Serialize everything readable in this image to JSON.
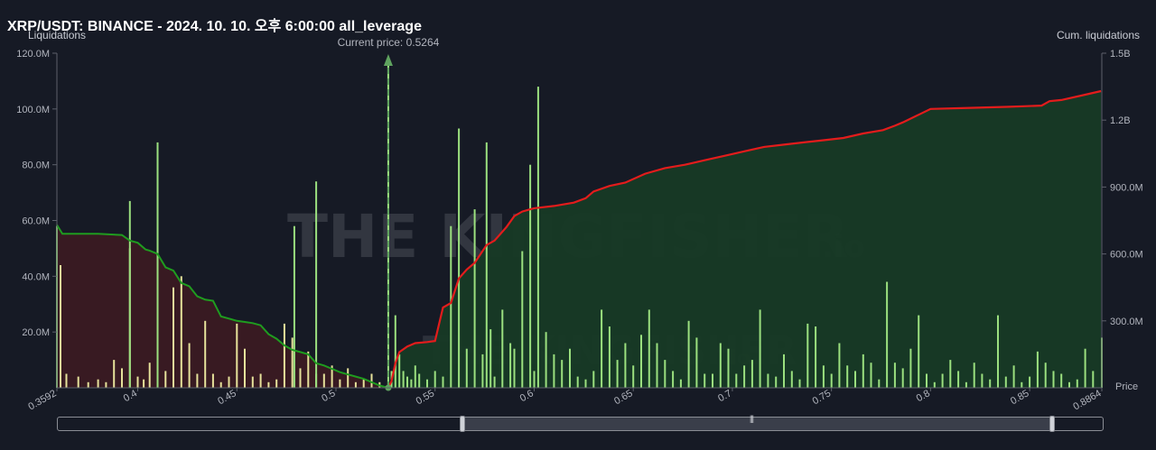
{
  "header": {
    "title": "XRP/USDT: BINANCE - 2024. 10. 10. 오후 6:00:00 all_leverage",
    "left_axis_title": "Liquidations",
    "right_axis_title": "Cum. liquidations",
    "x_axis_title": "Price",
    "current_price_label": "Current price: 0.5264"
  },
  "watermark": {
    "brand": "THE KINGFISHER",
    "suffix": ".io"
  },
  "colors": {
    "background": "#161a25",
    "short_bar": "#9be07f",
    "long_bar": "#e6e29b",
    "cum_short_line": "#e31c1c",
    "cum_long_line": "#1f9c1f",
    "cum_short_fill": "#173a25",
    "cum_long_fill": "#3a1a22",
    "current_price_line": "#5fa35f"
  },
  "chart_data": {
    "type": "bar",
    "x_range": [
      0.3592,
      0.8864
    ],
    "x_ticks": [
      "0.3592",
      "0.4",
      "0.45",
      "0.5",
      "0.55",
      "0.6",
      "0.65",
      "0.7",
      "0.75",
      "0.8",
      "0.85",
      "0.8864"
    ],
    "left_axis": {
      "label": "Liquidations",
      "range": [
        0,
        120000000
      ],
      "ticks": [
        "20.0M",
        "40.0M",
        "60.0M",
        "80.0M",
        "100.0M",
        "120.0M"
      ]
    },
    "right_axis": {
      "label": "Cum. liquidations",
      "range": [
        0,
        1500000000
      ],
      "ticks": [
        "300.0M",
        "600.0M",
        "900.0M",
        "1.2B",
        "1.5B"
      ]
    },
    "current_price": 0.5264,
    "long_liquidations": {
      "name": "Long liquidations",
      "x": [
        0.361,
        0.364,
        0.37,
        0.375,
        0.38,
        0.384,
        0.388,
        0.392,
        0.396,
        0.4,
        0.403,
        0.406,
        0.41,
        0.414,
        0.418,
        0.422,
        0.426,
        0.43,
        0.434,
        0.438,
        0.442,
        0.446,
        0.45,
        0.454,
        0.458,
        0.462,
        0.466,
        0.47,
        0.474,
        0.478,
        0.482,
        0.486,
        0.49,
        0.494,
        0.498,
        0.502,
        0.506,
        0.51,
        0.514,
        0.518,
        0.522
      ],
      "values": [
        44,
        5,
        4,
        2,
        3,
        2,
        10,
        7,
        50,
        4,
        3,
        9,
        3,
        6,
        36,
        40,
        16,
        5,
        24,
        5,
        2,
        4,
        23,
        14,
        4,
        5,
        2,
        3,
        23,
        18,
        7,
        13,
        5,
        5,
        8,
        3,
        7,
        2,
        3,
        5,
        2
      ]
    },
    "short_liquidations": {
      "name": "Short liquidations",
      "x": [
        0.3592,
        0.38,
        0.396,
        0.41,
        0.4225,
        0.434,
        0.442,
        0.479,
        0.49,
        0.498,
        0.512,
        0.518,
        0.5264,
        0.528,
        0.53,
        0.532,
        0.534,
        0.536,
        0.538,
        0.54,
        0.542,
        0.546,
        0.55,
        0.554,
        0.558,
        0.562,
        0.566,
        0.57,
        0.574,
        0.576,
        0.578,
        0.58,
        0.584,
        0.588,
        0.59,
        0.594,
        0.598,
        0.6,
        0.602,
        0.606,
        0.61,
        0.614,
        0.618,
        0.622,
        0.626,
        0.63,
        0.634,
        0.638,
        0.642,
        0.646,
        0.65,
        0.654,
        0.658,
        0.662,
        0.666,
        0.67,
        0.674,
        0.678,
        0.682,
        0.686,
        0.69,
        0.694,
        0.698,
        0.702,
        0.706,
        0.71,
        0.714,
        0.718,
        0.722,
        0.726,
        0.73,
        0.734,
        0.738,
        0.742,
        0.746,
        0.75,
        0.754,
        0.758,
        0.762,
        0.766,
        0.77,
        0.774,
        0.778,
        0.782,
        0.786,
        0.79,
        0.794,
        0.798,
        0.802,
        0.806,
        0.81,
        0.814,
        0.818,
        0.822,
        0.826,
        0.83,
        0.834,
        0.838,
        0.842,
        0.846,
        0.85,
        0.854,
        0.858,
        0.862,
        0.866,
        0.87,
        0.874,
        0.878,
        0.882,
        0.8864
      ],
      "values": [
        58,
        0,
        67,
        88,
        0,
        0,
        0,
        58,
        74,
        0,
        0,
        0,
        118,
        6,
        26,
        12,
        6,
        4,
        3,
        8,
        5,
        3,
        6,
        4,
        58,
        93,
        14,
        64,
        12,
        88,
        21,
        4,
        28,
        16,
        14,
        49,
        80,
        6,
        108,
        20,
        12,
        10,
        14,
        4,
        3,
        6,
        28,
        22,
        10,
        16,
        8,
        19,
        28,
        16,
        10,
        6,
        3,
        24,
        18,
        5,
        5,
        16,
        14,
        5,
        8,
        10,
        28,
        5,
        4,
        12,
        6,
        3,
        23,
        22,
        8,
        5,
        16,
        8,
        6,
        12,
        9,
        3,
        38,
        9,
        7,
        14,
        26,
        5,
        2,
        5,
        10,
        6,
        2,
        9,
        5,
        3,
        26,
        4,
        8,
        2,
        4,
        13,
        9,
        6,
        5,
        2,
        3,
        14,
        6,
        18
      ]
    },
    "cum_long": {
      "name": "Cum. long liquidations",
      "x": [
        0.3592,
        0.362,
        0.37,
        0.38,
        0.392,
        0.396,
        0.4,
        0.404,
        0.406,
        0.41,
        0.414,
        0.418,
        0.422,
        0.426,
        0.43,
        0.434,
        0.438,
        0.442,
        0.446,
        0.45,
        0.454,
        0.458,
        0.462,
        0.466,
        0.47,
        0.474,
        0.478,
        0.482,
        0.486,
        0.49,
        0.494,
        0.498,
        0.502,
        0.506,
        0.51,
        0.514,
        0.518,
        0.522,
        0.5264
      ],
      "values": [
        730,
        690,
        690,
        690,
        685,
        660,
        650,
        620,
        615,
        600,
        540,
        525,
        470,
        455,
        410,
        395,
        390,
        320,
        310,
        300,
        295,
        290,
        280,
        240,
        220,
        190,
        170,
        160,
        150,
        110,
        100,
        85,
        70,
        60,
        50,
        40,
        25,
        10,
        0
      ]
    },
    "cum_short": {
      "name": "Cum. short liquidations",
      "x": [
        0.5264,
        0.528,
        0.53,
        0.532,
        0.536,
        0.54,
        0.546,
        0.55,
        0.554,
        0.558,
        0.562,
        0.566,
        0.57,
        0.576,
        0.58,
        0.586,
        0.59,
        0.594,
        0.598,
        0.6,
        0.61,
        0.62,
        0.626,
        0.63,
        0.638,
        0.646,
        0.656,
        0.666,
        0.676,
        0.686,
        0.696,
        0.706,
        0.716,
        0.726,
        0.736,
        0.746,
        0.756,
        0.766,
        0.776,
        0.782,
        0.786,
        0.8,
        0.82,
        0.84,
        0.856,
        0.86,
        0.866,
        0.876,
        0.886
      ],
      "values": [
        0,
        30,
        110,
        160,
        185,
        200,
        205,
        210,
        360,
        380,
        490,
        530,
        560,
        640,
        660,
        720,
        770,
        790,
        800,
        805,
        815,
        830,
        850,
        880,
        905,
        920,
        960,
        985,
        1000,
        1020,
        1040,
        1060,
        1080,
        1090,
        1100,
        1110,
        1120,
        1140,
        1155,
        1175,
        1190,
        1250,
        1255,
        1260,
        1265,
        1285,
        1290,
        1310,
        1330
      ]
    }
  }
}
